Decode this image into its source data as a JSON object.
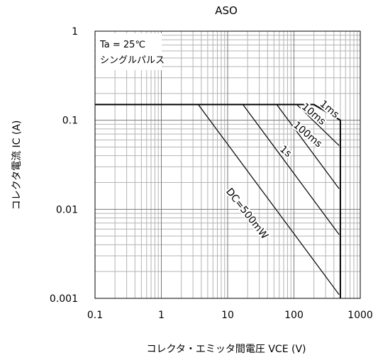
{
  "chart_data": {
    "type": "line",
    "title": "ASO",
    "xlabel": "コレクタ・エミッタ間電圧 VCE (V)",
    "ylabel": "コレクタ電流 IC (A)",
    "xscale": "log",
    "yscale": "log",
    "xlim": [
      0.1,
      1000
    ],
    "ylim": [
      0.001,
      1
    ],
    "grid": true,
    "xticks": [
      "0.1",
      "1",
      "10",
      "100",
      "1000"
    ],
    "yticks": [
      "1",
      "0.1",
      "0.01",
      "0.001"
    ],
    "conditions": [
      "Ta = 25℃",
      "シングルパルス"
    ],
    "series": [
      {
        "name": "1ms",
        "x": [
          0.1,
          200,
          500,
          500
        ],
        "y": [
          0.15,
          0.15,
          0.1,
          0.001
        ]
      },
      {
        "name": "10ms",
        "x": [
          110,
          480
        ],
        "y": [
          0.15,
          0.052
        ]
      },
      {
        "name": "100ms",
        "x": [
          55,
          480
        ],
        "y": [
          0.15,
          0.017
        ]
      },
      {
        "name": "1s",
        "x": [
          17,
          480
        ],
        "y": [
          0.15,
          0.0052
        ]
      },
      {
        "name": "DC=500mW",
        "x": [
          3.6,
          480
        ],
        "y": [
          0.15,
          0.0011
        ]
      }
    ]
  }
}
